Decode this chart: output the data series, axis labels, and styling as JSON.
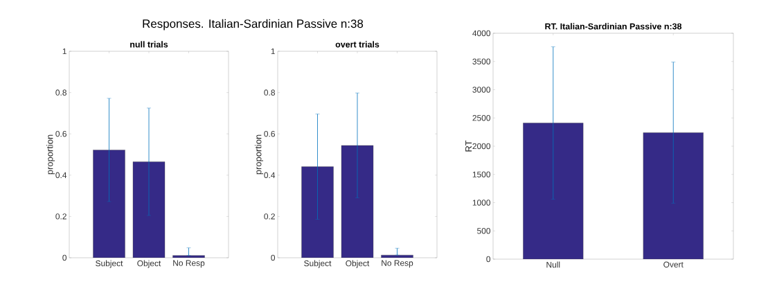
{
  "chart_data": [
    {
      "type": "bar",
      "title": "null trials",
      "ylabel": "proportion",
      "categories": [
        "Subject",
        "Object",
        "No Resp"
      ],
      "values": [
        0.522,
        0.465,
        0.011
      ],
      "errors": [
        0.25,
        0.26,
        [
          0.011,
          0.048
        ]
      ],
      "color": "#352a87",
      "ylim": [
        0,
        1
      ],
      "yticks": [
        0,
        0.2,
        0.4,
        0.6,
        0.8,
        1
      ],
      "annotations": [
        "Responses. Italian-Sardinian Passive n:38"
      ]
    },
    {
      "type": "bar",
      "title": "overt trials",
      "ylabel": "proportion",
      "categories": [
        "Subject",
        "Object",
        "No Resp"
      ],
      "values": [
        0.441,
        0.544,
        0.013
      ],
      "errors": [
        0.255,
        0.254,
        [
          0.013,
          0.046
        ]
      ],
      "color": "#352a87",
      "ylim": [
        0,
        1
      ],
      "yticks": [
        0,
        0.2,
        0.4,
        0.6,
        0.8,
        1
      ]
    },
    {
      "type": "bar",
      "title": "RT. Italian-Sardinian Passive n:38",
      "ylabel": "RT",
      "categories": [
        "Null",
        "Overt"
      ],
      "values": [
        2410,
        2240
      ],
      "errors": [
        1350,
        1250
      ],
      "color": "#352a87",
      "ylim": [
        0,
        4000
      ],
      "yticks": [
        0,
        500,
        1000,
        1500,
        2000,
        2500,
        3000,
        3500,
        4000
      ]
    }
  ]
}
